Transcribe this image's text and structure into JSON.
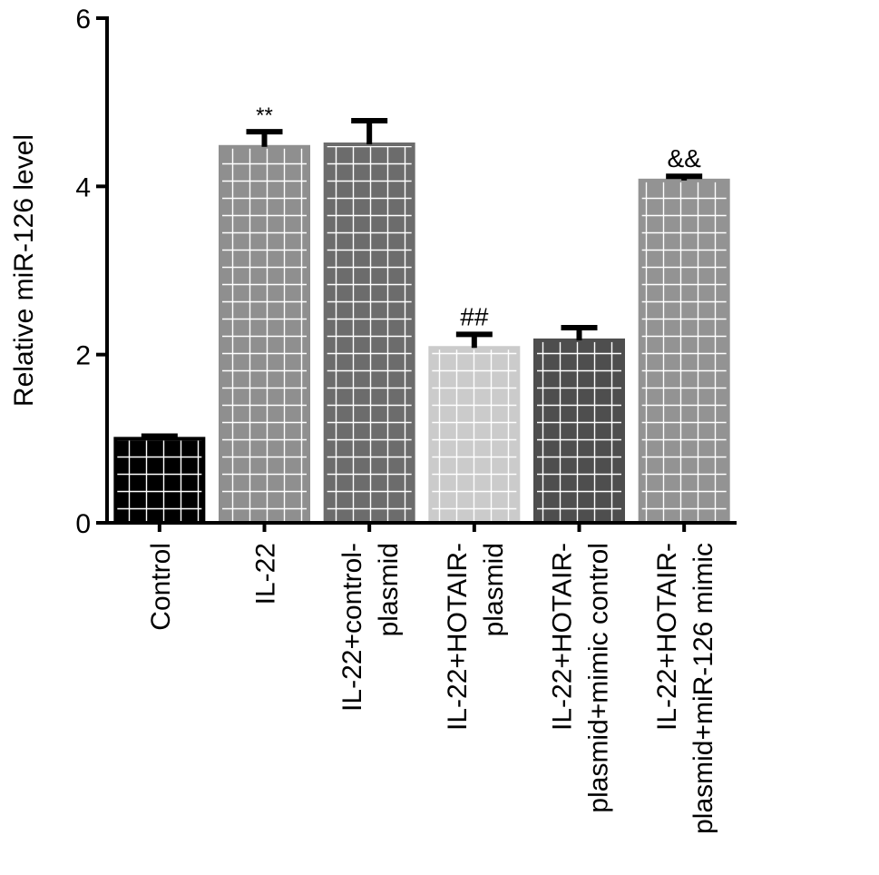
{
  "chart_data": {
    "type": "bar",
    "title": "",
    "xlabel": "",
    "ylabel": "Relative miR-126 level",
    "ylim": [
      0,
      6
    ],
    "yticks": [
      "0",
      "2",
      "4",
      "6"
    ],
    "grid": false,
    "legend": "none",
    "categories": [
      [
        "Control"
      ],
      [
        "IL-22"
      ],
      [
        "IL-22+control-",
        "plasmid"
      ],
      [
        "IL-22+HOTAIR-",
        "plasmid"
      ],
      [
        "IL-22+HOTAIR-",
        "plasmid+mimic control"
      ],
      [
        "IL-22+HOTAIR-",
        "plasmid+miR-126 mimic"
      ]
    ],
    "values": [
      1.0,
      4.47,
      4.5,
      2.08,
      2.17,
      4.07
    ],
    "errors": [
      0.03,
      0.18,
      0.28,
      0.16,
      0.15,
      0.05
    ],
    "annotations": [
      "",
      "**",
      "",
      "##",
      "",
      "&&"
    ],
    "colors": [
      "#000000",
      "#8f8f8f",
      "#6c6c6c",
      "#cbcbcb",
      "#4e4e4e",
      "#939393"
    ]
  }
}
